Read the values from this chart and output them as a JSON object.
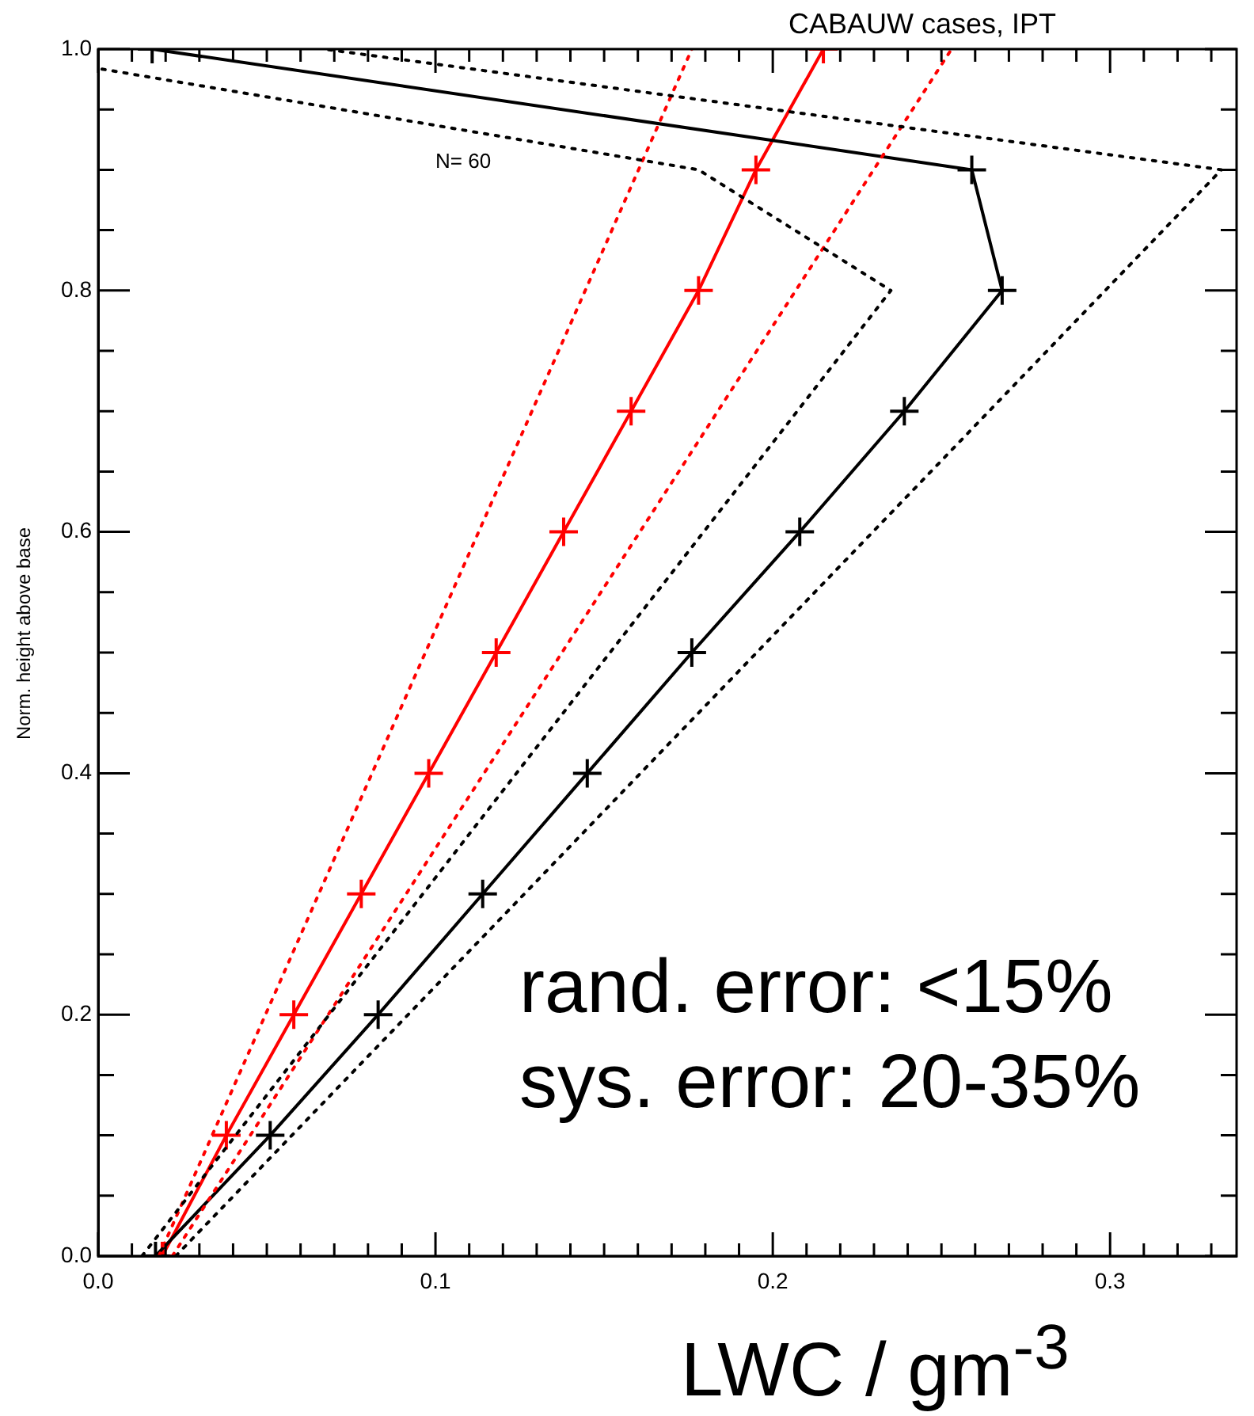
{
  "chart_data": {
    "type": "line",
    "title": "CABAUW cases, IPT",
    "xlabel": "LWC / gm$^{-3}$",
    "ylabel": "Norm. height above base",
    "annotations": [
      "N= 60",
      "rand. error: <15%",
      "sys. error: 20-35%"
    ],
    "xlim": [
      0,
      0.3375
    ],
    "xticks": [
      {
        "value": 0,
        "label": "0.0"
      },
      {
        "value": 0.01,
        "label": null
      },
      {
        "value": 0.02,
        "label": null
      },
      {
        "value": 0.03,
        "label": null
      },
      {
        "value": 0.04,
        "label": null
      },
      {
        "value": 0.05,
        "label": null
      },
      {
        "value": 0.06,
        "label": null
      },
      {
        "value": 0.07,
        "label": null
      },
      {
        "value": 0.08,
        "label": null
      },
      {
        "value": 0.09,
        "label": null
      },
      {
        "value": 0.1,
        "label": "0.1"
      },
      {
        "value": 0.11,
        "label": null
      },
      {
        "value": 0.12,
        "label": null
      },
      {
        "value": 0.13,
        "label": null
      },
      {
        "value": 0.14,
        "label": null
      },
      {
        "value": 0.15,
        "label": null
      },
      {
        "value": 0.16,
        "label": null
      },
      {
        "value": 0.17,
        "label": null
      },
      {
        "value": 0.18,
        "label": null
      },
      {
        "value": 0.19,
        "label": null
      },
      {
        "value": 0.2,
        "label": "0.2"
      },
      {
        "value": 0.21,
        "label": null
      },
      {
        "value": 0.22,
        "label": null
      },
      {
        "value": 0.23,
        "label": null
      },
      {
        "value": 0.24,
        "label": null
      },
      {
        "value": 0.25,
        "label": null
      },
      {
        "value": 0.26,
        "label": null
      },
      {
        "value": 0.27,
        "label": null
      },
      {
        "value": 0.28,
        "label": null
      },
      {
        "value": 0.29,
        "label": null
      },
      {
        "value": 0.3,
        "label": "0.3"
      },
      {
        "value": 0.31,
        "label": null
      },
      {
        "value": 0.32,
        "label": null
      },
      {
        "value": 0.33,
        "label": null
      }
    ],
    "ylim": [
      0,
      1
    ],
    "yticks": [
      {
        "value": 0,
        "label": "0.0"
      },
      {
        "value": 0.05,
        "label": null
      },
      {
        "value": 0.1,
        "label": null
      },
      {
        "value": 0.15,
        "label": null
      },
      {
        "value": 0.2,
        "label": "0.2"
      },
      {
        "value": 0.25,
        "label": null
      },
      {
        "value": 0.3,
        "label": null
      },
      {
        "value": 0.35,
        "label": null
      },
      {
        "value": 0.4,
        "label": "0.4"
      },
      {
        "value": 0.45,
        "label": null
      },
      {
        "value": 0.5,
        "label": null
      },
      {
        "value": 0.55,
        "label": null
      },
      {
        "value": 0.6,
        "label": "0.6"
      },
      {
        "value": 0.65,
        "label": null
      },
      {
        "value": 0.7,
        "label": null
      },
      {
        "value": 0.75,
        "label": null
      },
      {
        "value": 0.8,
        "label": "0.8"
      },
      {
        "value": 0.85,
        "label": null
      },
      {
        "value": 0.9,
        "label": null
      },
      {
        "value": 0.95,
        "label": null
      },
      {
        "value": 1,
        "label": "1.0"
      }
    ],
    "series": [
      {
        "color": "#000000",
        "marker": "none",
        "line_style": "dotted",
        "x": [
          0.013,
          0.235,
          0.178,
          0.0
        ],
        "values": [
          0,
          0.8,
          0.9,
          0.984
        ]
      },
      {
        "color": "#000000",
        "marker": "none",
        "line_style": "dotted",
        "x": [
          0.023,
          0.333,
          0.067
        ],
        "values": [
          0,
          0.9,
          1.0
        ]
      },
      {
        "color": "#ff0000",
        "marker": "none",
        "line_style": "dotted",
        "x": [
          0.018,
          0.176
        ],
        "values": [
          0,
          1.0
        ]
      },
      {
        "color": "#ff0000",
        "marker": "none",
        "line_style": "dotted",
        "x": [
          0.022,
          0.253
        ],
        "values": [
          0,
          1.0
        ]
      },
      {
        "color": "#000000",
        "marker": "cross",
        "line_style": "solid",
        "x": [
          0.017,
          0.051,
          0.083,
          0.114,
          0.145,
          0.176,
          0.208,
          0.239,
          0.268,
          0.259,
          0.016
        ],
        "values": [
          0,
          0.1,
          0.2,
          0.3,
          0.4,
          0.5,
          0.6,
          0.7,
          0.8,
          0.9,
          1.0
        ]
      },
      {
        "color": "#ff0000",
        "marker": "cross",
        "line_style": "solid",
        "x": [
          0.019,
          0.038,
          0.058,
          0.078,
          0.098,
          0.118,
          0.138,
          0.158,
          0.178,
          0.195,
          0.215
        ],
        "values": [
          0,
          0.1,
          0.2,
          0.3,
          0.4,
          0.5,
          0.6,
          0.7,
          0.8,
          0.9,
          1.0
        ]
      }
    ]
  }
}
